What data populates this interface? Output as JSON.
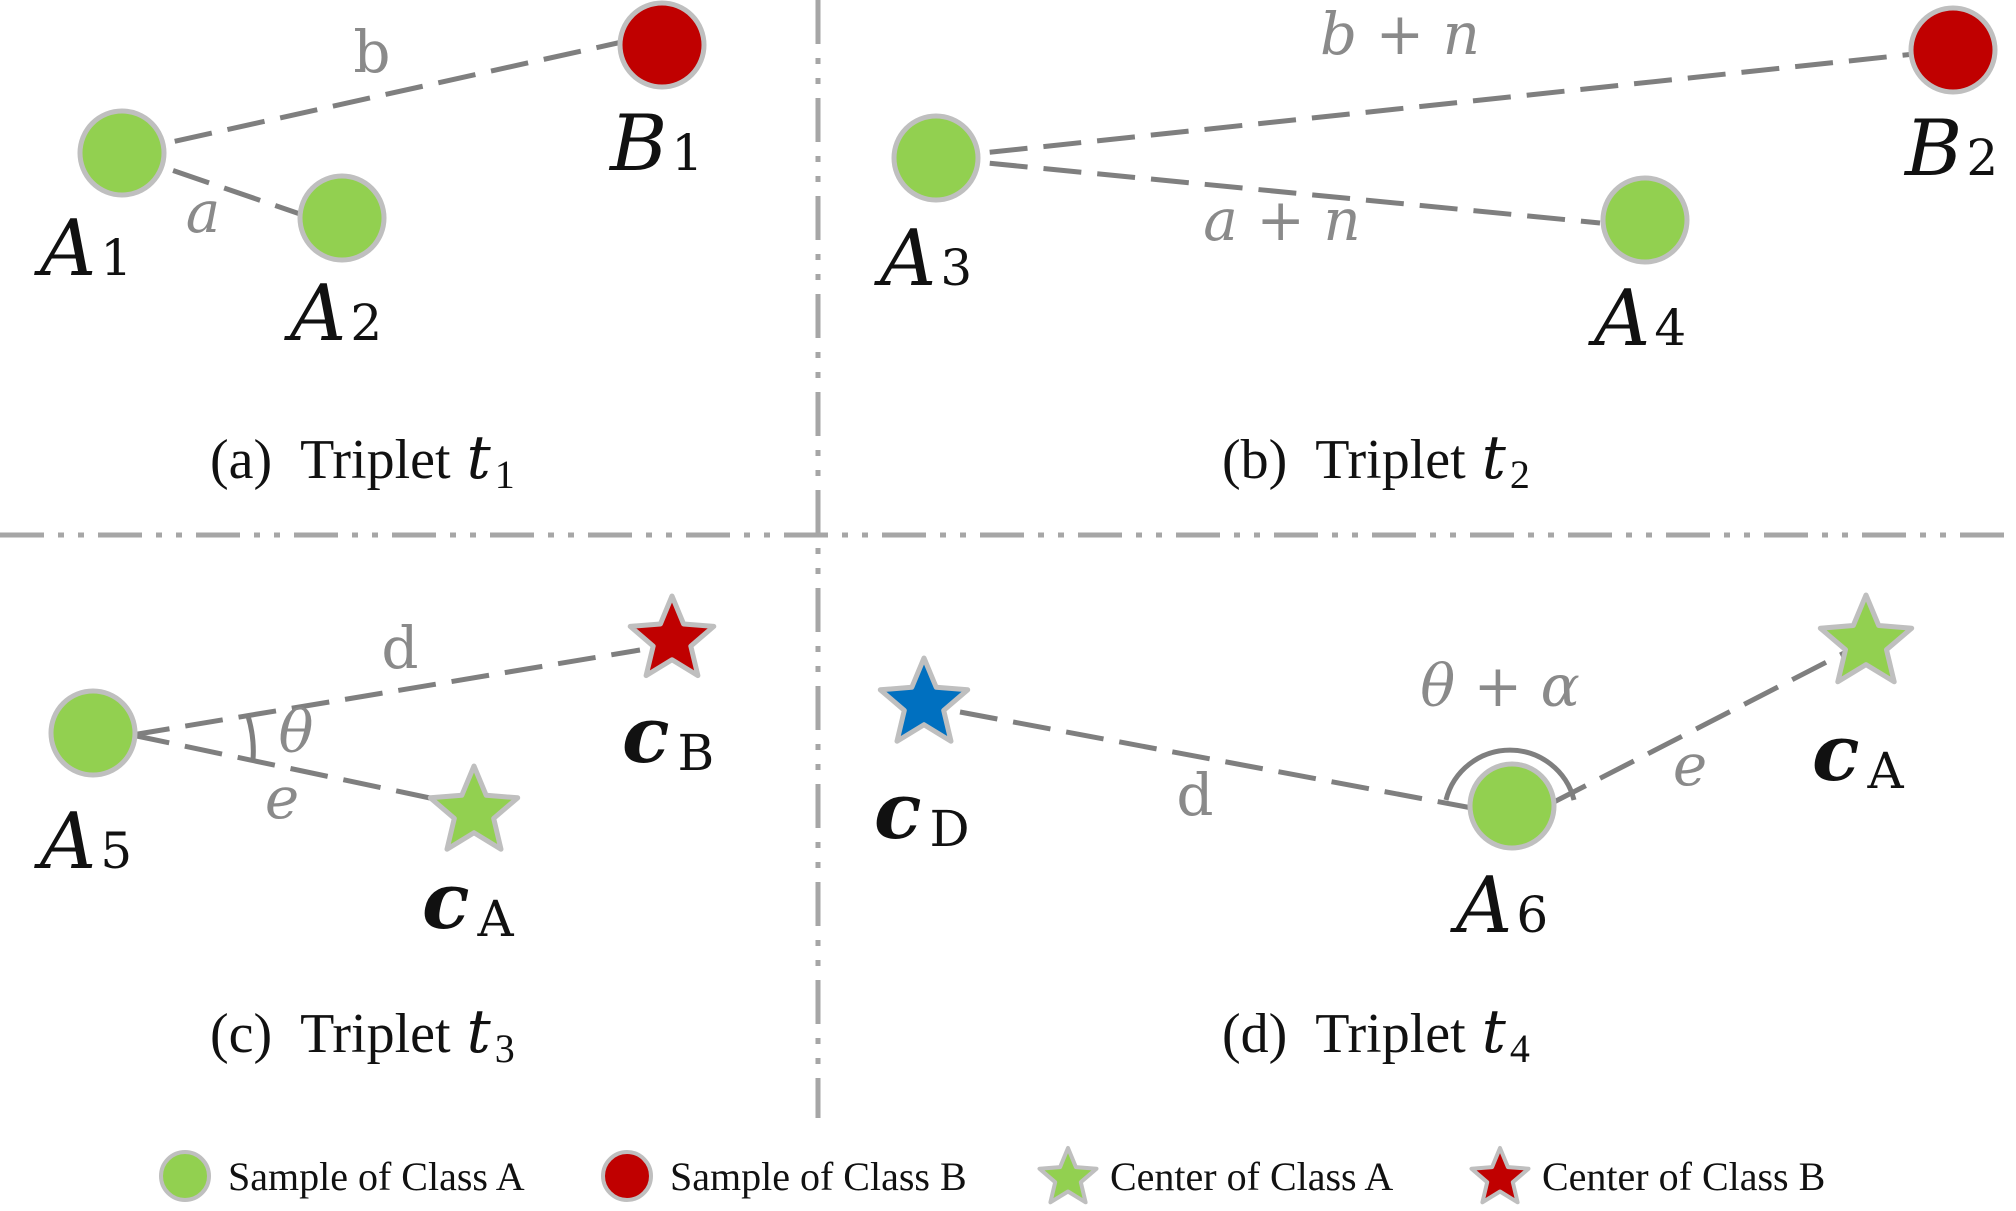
{
  "colors": {
    "class_a": "#92d050",
    "class_b": "#c00000",
    "class_d": "#0070c0",
    "outline": "#bfbfbf",
    "edge": "#7f7f7f",
    "divider": "#a6a6a6"
  },
  "panels": {
    "a": {
      "caption_prefix": "(a)",
      "caption_word": "Triplet",
      "caption_var": "t",
      "caption_sub": "1",
      "nodes": {
        "a1": {
          "main": "A",
          "sub": "1"
        },
        "a2": {
          "main": "A",
          "sub": "2"
        },
        "b1": {
          "main": "B",
          "sub": "1"
        }
      },
      "edges": {
        "to_b": "b",
        "to_a": "a"
      }
    },
    "b": {
      "caption_prefix": "(b)",
      "caption_word": "Triplet",
      "caption_var": "t",
      "caption_sub": "2",
      "nodes": {
        "a3": {
          "main": "A",
          "sub": "3"
        },
        "a4": {
          "main": "A",
          "sub": "4"
        },
        "b2": {
          "main": "B",
          "sub": "2"
        }
      },
      "edges": {
        "to_b": "b + n",
        "to_a": "a + n"
      }
    },
    "c": {
      "caption_prefix": "(c)",
      "caption_word": "Triplet",
      "caption_var": "t",
      "caption_sub": "3",
      "nodes": {
        "a5": {
          "main": "A",
          "sub": "5"
        },
        "cb": {
          "main": "c",
          "sub": "B"
        },
        "ca": {
          "main": "c",
          "sub": "A"
        }
      },
      "edges": {
        "to_cb": "d",
        "to_ca": "e",
        "angle": "θ"
      }
    },
    "d": {
      "caption_prefix": "(d)",
      "caption_word": "Triplet",
      "caption_var": "t",
      "caption_sub": "4",
      "nodes": {
        "a6": {
          "main": "A",
          "sub": "6"
        },
        "cd": {
          "main": "c",
          "sub": "D"
        },
        "ca": {
          "main": "c",
          "sub": "A"
        }
      },
      "edges": {
        "to_cd": "d",
        "to_ca": "e",
        "angle": "θ + α"
      }
    }
  },
  "legend": [
    {
      "label": "Sample of Class A",
      "icon": "green-circle-icon"
    },
    {
      "label": "Sample of Class B",
      "icon": "red-circle-icon"
    },
    {
      "label": "Center of Class A",
      "icon": "green-star-icon"
    },
    {
      "label": "Center of Class B",
      "icon": "red-star-icon"
    }
  ]
}
